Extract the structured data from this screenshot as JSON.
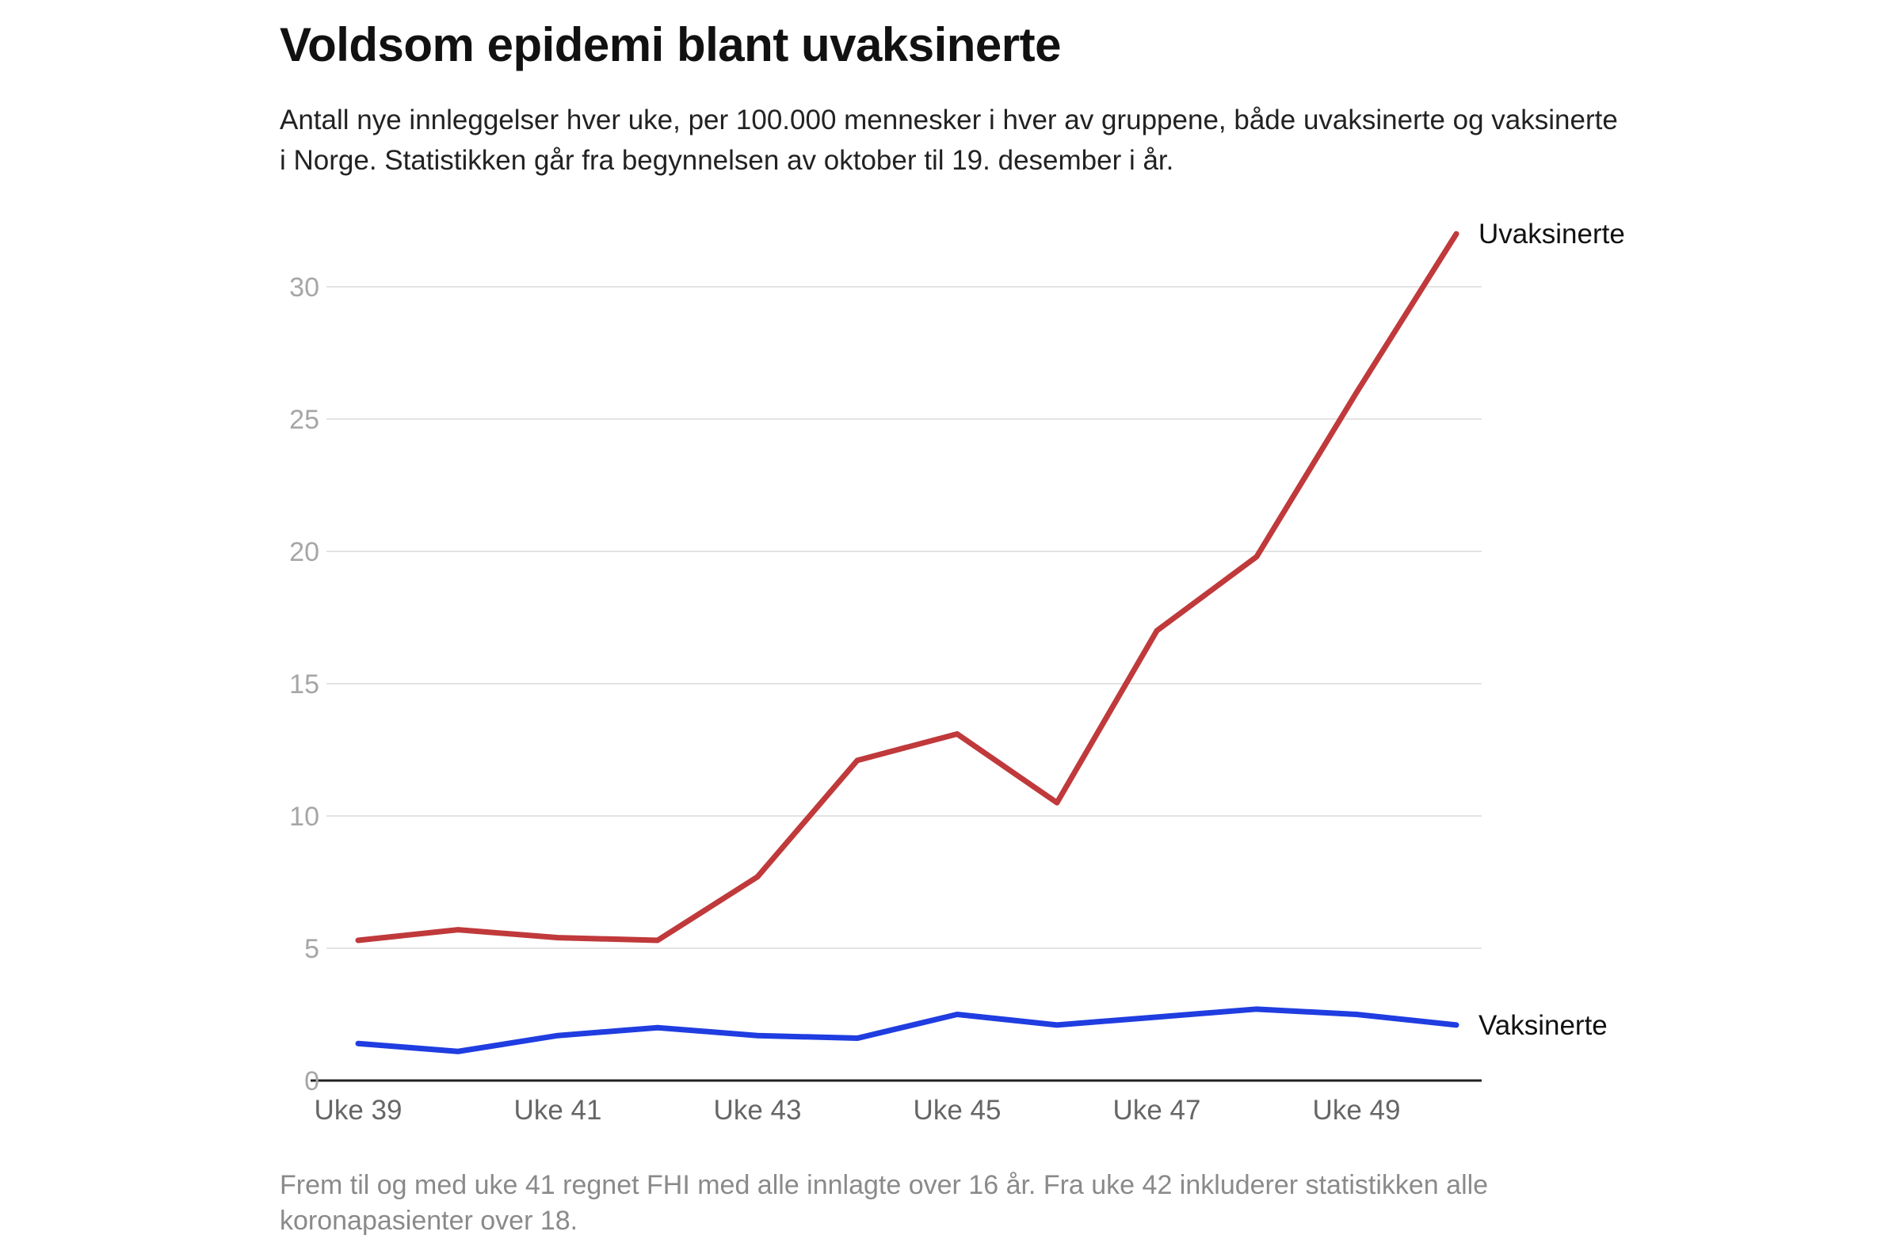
{
  "title": "Voldsom epidemi blant uvaksinerte",
  "subtitle": "Antall nye innleggelser hver uke, per 100.000 mennesker i hver av gruppene, både uvaksinerte og vaksinerte i Norge. Statistikken går fra begynnelsen av oktober til 19. desember i år.",
  "note": "Frem til og med uke 41 regnet FHI med alle innlagte over 16 år. Fra uke 42 inkluderer statistikken alle koronapasienter over 18.",
  "chart_data": {
    "type": "line",
    "title": "Voldsom epidemi blant uvaksinerte",
    "xlabel": "",
    "ylabel": "",
    "x": [
      39,
      40,
      41,
      42,
      43,
      44,
      45,
      46,
      47,
      48,
      49,
      50
    ],
    "x_tick_values": [
      39,
      41,
      43,
      45,
      47,
      49
    ],
    "x_tick_labels": [
      "Uke 39",
      "Uke 41",
      "Uke 43",
      "Uke 45",
      "Uke 47",
      "Uke 49"
    ],
    "y_ticks": [
      0,
      5,
      10,
      15,
      20,
      25,
      30
    ],
    "ylim": [
      0,
      30
    ],
    "grid": true,
    "legend": "direct labels at line ends",
    "series": [
      {
        "name": "Uvaksinerte",
        "color": "#c0393b",
        "values": [
          5.3,
          5.7,
          5.4,
          5.3,
          7.7,
          12.1,
          13.1,
          10.5,
          17.0,
          19.8,
          26.0,
          32.0
        ]
      },
      {
        "name": "Vaksinerte",
        "color": "#1f3de0",
        "values": [
          1.4,
          1.1,
          1.7,
          2.0,
          1.7,
          1.6,
          2.5,
          2.1,
          2.4,
          2.7,
          2.5,
          2.1
        ]
      }
    ]
  }
}
